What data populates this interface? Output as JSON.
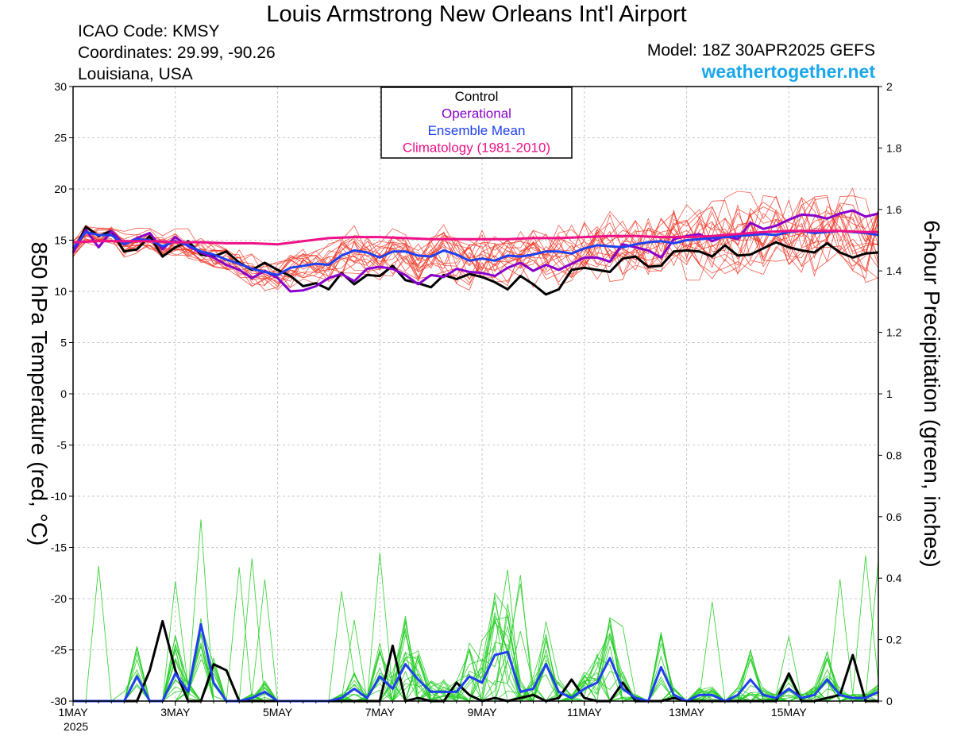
{
  "header": {
    "title": "Louis Armstrong New Orleans Int'l Airport",
    "icao": "ICAO Code: KMSY",
    "coordinates": "Coordinates: 29.99, -90.26",
    "region": "Louisiana, USA",
    "model": "Model: 18Z 30APR2025 GEFS",
    "brand": "weathertogether.net"
  },
  "colors": {
    "control": "#000000",
    "operational": "#8800cc",
    "ensemble_mean": "#2040ee",
    "climatology": "#ee1188",
    "member_temp": "#ee3322",
    "member_precip": "#22cc22"
  },
  "chart_data": {
    "type": "line",
    "xlabel": "",
    "ylabel": "850 hPa Temperature (red, °C)",
    "y2label": "6-hour Precipitation (green, inches)",
    "ylim": [
      -30,
      30
    ],
    "y2lim": [
      0,
      2
    ],
    "yticks": [
      30,
      25,
      20,
      15,
      10,
      5,
      0,
      -5,
      -10,
      -15,
      -20,
      -25,
      -30
    ],
    "y2ticks": [
      "2",
      "1.8",
      "1.6",
      "1.4",
      "1.2",
      "1",
      "0.8",
      "0.6",
      "0.4",
      "0.2",
      "0"
    ],
    "grid": true,
    "legend_position": "top-center",
    "x_unit": "days since 1 May 2025 00Z",
    "xlim": [
      0,
      15.75
    ],
    "xticks": [
      {
        "x": 0,
        "label": "1MAY",
        "sub": "2025"
      },
      {
        "x": 2,
        "label": "3MAY"
      },
      {
        "x": 4,
        "label": "5MAY"
      },
      {
        "x": 6,
        "label": "7MAY"
      },
      {
        "x": 8,
        "label": "9MAY"
      },
      {
        "x": 10,
        "label": "11MAY"
      },
      {
        "x": 12,
        "label": "13MAY"
      },
      {
        "x": 14,
        "label": "15MAY"
      }
    ],
    "legend": [
      "Control",
      "Operational",
      "Ensemble Mean",
      "Climatology (1981-2010)"
    ],
    "series": [
      {
        "name": "Control",
        "axis": "temp",
        "color": "#000000",
        "x": [
          0,
          0.25,
          0.5,
          0.75,
          1,
          1.25,
          1.5,
          1.75,
          2,
          2.25,
          2.5,
          2.75,
          3,
          3.25,
          3.5,
          3.75,
          4,
          4.25,
          4.5,
          4.75,
          5,
          5.25,
          5.5,
          5.75,
          6,
          6.25,
          6.5,
          6.75,
          7,
          7.25,
          7.5,
          7.75,
          8,
          8.25,
          8.5,
          8.75,
          9,
          9.25,
          9.5,
          9.75,
          10,
          10.25,
          10.5,
          10.75,
          11,
          11.25,
          11.5,
          11.75,
          12,
          12.25,
          12.5,
          12.75,
          13,
          13.25,
          13.5,
          13.75,
          14,
          14.25,
          14.5,
          14.75,
          15,
          15.25,
          15.5,
          15.75
        ],
        "y": [
          13.8,
          16.3,
          15.4,
          15.9,
          13.9,
          14.1,
          15.4,
          13.4,
          14.3,
          14.9,
          13.6,
          13.4,
          13.9,
          12.8,
          12.1,
          12.8,
          12.1,
          11.5,
          10.5,
          10.8,
          10.2,
          11.8,
          10.7,
          11.6,
          11.5,
          12.5,
          11.1,
          10.8,
          10.4,
          11.6,
          11.2,
          11.7,
          11.4,
          10.9,
          10.2,
          11.5,
          10.7,
          9.7,
          10.2,
          12.1,
          12.3,
          12.1,
          11.9,
          13.2,
          13.4,
          12.4,
          12.5,
          13.9,
          14.0,
          13.9,
          13.4,
          14.5,
          13.5,
          13.6,
          14.2,
          14.8,
          14.3,
          14.0,
          13.8,
          14.7,
          13.8,
          13.3,
          13.7,
          13.8
        ]
      },
      {
        "name": "Operational",
        "axis": "temp",
        "color": "#8800cc",
        "x": [
          0,
          0.25,
          0.5,
          0.75,
          1,
          1.25,
          1.5,
          1.75,
          2,
          2.25,
          2.5,
          2.75,
          3,
          3.25,
          3.5,
          3.75,
          4,
          4.25,
          4.5,
          4.75,
          5,
          5.25,
          5.5,
          5.75,
          6,
          6.25,
          6.5,
          6.75,
          7,
          7.25,
          7.5,
          7.75,
          8,
          8.25,
          8.5,
          8.75,
          9,
          9.25,
          9.5,
          9.75,
          10,
          10.25,
          10.5,
          10.75,
          11,
          11.25,
          11.5,
          11.75,
          12,
          12.25,
          12.5,
          12.75,
          13,
          13.25,
          13.5,
          13.75,
          14,
          14.25,
          14.5,
          14.75,
          15,
          15.25,
          15.5,
          15.75
        ],
        "y": [
          13.8,
          16.0,
          14.3,
          15.9,
          14.6,
          15.2,
          15.7,
          14.1,
          15.3,
          14.4,
          13.8,
          13.3,
          12.6,
          12.1,
          11.3,
          12.0,
          11.3,
          10.0,
          10.1,
          10.5,
          11.3,
          11.7,
          11.0,
          12.2,
          12.4,
          12.2,
          11.6,
          10.7,
          11.6,
          11.4,
          12.2,
          11.9,
          11.8,
          11.5,
          12.3,
          12.8,
          12.0,
          12.6,
          12.1,
          12.7,
          13.3,
          13.3,
          12.9,
          14.6,
          14.3,
          14.0,
          13.3,
          15.1,
          15.4,
          15.6,
          14.9,
          15.4,
          15.1,
          16.7,
          16.1,
          16.4,
          17.0,
          17.5,
          17.4,
          17.1,
          17.6,
          17.9,
          17.3,
          17.6
        ]
      },
      {
        "name": "Ensemble Mean",
        "axis": "temp",
        "color": "#2040ee",
        "x": [
          0,
          0.25,
          0.5,
          0.75,
          1,
          1.25,
          1.5,
          1.75,
          2,
          2.25,
          2.5,
          2.75,
          3,
          3.25,
          3.5,
          3.75,
          4,
          4.25,
          4.5,
          4.75,
          5,
          5.25,
          5.5,
          5.75,
          6,
          6.25,
          6.5,
          6.75,
          7,
          7.25,
          7.5,
          7.75,
          8,
          8.25,
          8.5,
          8.75,
          9,
          9.25,
          9.5,
          9.75,
          10,
          10.25,
          10.5,
          10.75,
          11,
          11.25,
          11.5,
          11.75,
          12,
          12.25,
          12.5,
          12.75,
          13,
          13.25,
          13.5,
          13.75,
          14,
          14.25,
          14.5,
          14.75,
          15,
          15.25,
          15.5,
          15.75
        ],
        "y": [
          14.2,
          15.8,
          15.5,
          15.5,
          14.6,
          15.1,
          15.0,
          14.4,
          14.9,
          14.5,
          13.9,
          13.6,
          13.1,
          12.7,
          12.2,
          11.9,
          11.6,
          12.3,
          12.5,
          12.7,
          12.6,
          13.5,
          14.0,
          13.8,
          13.3,
          13.9,
          13.9,
          13.5,
          13.4,
          14.0,
          13.6,
          13.0,
          13.2,
          13.0,
          13.5,
          13.4,
          13.6,
          13.9,
          13.9,
          13.7,
          14.2,
          14.5,
          14.4,
          14.3,
          14.6,
          14.8,
          14.9,
          14.7,
          15.0,
          15.1,
          15.2,
          15.3,
          15.4,
          15.5,
          15.6,
          15.5,
          15.8,
          15.9,
          15.7,
          15.8,
          15.9,
          15.8,
          15.7,
          15.5
        ]
      },
      {
        "name": "Climatology (1981-2010)",
        "axis": "temp",
        "color": "#ee1188",
        "x": [
          0,
          0.5,
          1,
          1.5,
          2,
          2.5,
          3,
          3.5,
          4,
          4.5,
          5,
          5.5,
          6,
          6.5,
          7,
          7.5,
          8,
          8.5,
          9,
          9.5,
          10,
          10.5,
          11,
          11.5,
          12,
          12.5,
          13,
          13.5,
          14,
          14.5,
          15,
          15.5,
          15.75
        ],
        "y": [
          14.8,
          14.9,
          14.9,
          14.9,
          14.8,
          14.8,
          14.7,
          14.7,
          14.6,
          14.9,
          15.2,
          15.3,
          15.3,
          15.2,
          15.1,
          15.1,
          15.1,
          15.1,
          15.2,
          15.2,
          15.3,
          15.4,
          15.4,
          15.3,
          15.3,
          15.4,
          15.6,
          15.8,
          15.9,
          15.9,
          15.9,
          15.8,
          15.8
        ]
      },
      {
        "name": "Control",
        "axis": "precip",
        "color": "#000000",
        "x": [
          0,
          0.25,
          0.5,
          0.75,
          1,
          1.25,
          1.5,
          1.75,
          2,
          2.25,
          2.5,
          2.75,
          3,
          3.25,
          3.5,
          3.75,
          4,
          4.25,
          4.5,
          4.75,
          5,
          5.25,
          5.5,
          5.75,
          6,
          6.25,
          6.5,
          6.75,
          7,
          7.25,
          7.5,
          7.75,
          8,
          8.25,
          8.5,
          8.75,
          9,
          9.25,
          9.5,
          9.75,
          10,
          10.25,
          10.5,
          10.75,
          11,
          11.25,
          11.5,
          11.75,
          12,
          12.25,
          12.5,
          12.75,
          13,
          13.25,
          13.5,
          13.75,
          14,
          14.25,
          14.5,
          14.75,
          15,
          15.25,
          15.5,
          15.75
        ],
        "y": [
          0,
          0,
          0,
          0,
          0,
          0,
          0.1,
          0.26,
          0.1,
          0,
          0,
          0.12,
          0.1,
          0,
          0,
          0,
          0,
          0,
          0,
          0,
          0,
          0,
          0,
          0,
          0,
          0.18,
          0,
          0.01,
          0,
          0,
          0.06,
          0.02,
          0,
          0.01,
          0,
          0.01,
          0.02,
          0,
          0.01,
          0.07,
          0.01,
          0,
          0,
          0.06,
          0,
          0,
          0,
          0.01,
          0,
          0,
          0,
          0,
          0,
          0,
          0,
          0,
          0.09,
          0,
          0,
          0.01,
          0.02,
          0.15,
          0,
          0
        ]
      },
      {
        "name": "Ensemble Mean",
        "axis": "precip",
        "color": "#2040ee",
        "x": [
          0,
          0.25,
          0.5,
          0.75,
          1,
          1.25,
          1.5,
          1.75,
          2,
          2.25,
          2.5,
          2.75,
          3,
          3.25,
          3.5,
          3.75,
          4,
          4.25,
          4.5,
          4.75,
          5,
          5.25,
          5.5,
          5.75,
          6,
          6.25,
          6.5,
          6.75,
          7,
          7.25,
          7.5,
          7.75,
          8,
          8.25,
          8.5,
          8.75,
          9,
          9.25,
          9.5,
          9.75,
          10,
          10.25,
          10.5,
          10.75,
          11,
          11.25,
          11.5,
          11.75,
          12,
          12.25,
          12.5,
          12.75,
          13,
          13.25,
          13.5,
          13.75,
          14,
          14.25,
          14.5,
          14.75,
          15,
          15.25,
          15.5,
          15.75
        ],
        "y": [
          0,
          0,
          0,
          0,
          0,
          0.08,
          0,
          0,
          0.09,
          0.03,
          0.25,
          0.06,
          0,
          0,
          0.01,
          0.03,
          0,
          0,
          0,
          0,
          0,
          0.01,
          0.04,
          0.01,
          0.08,
          0.04,
          0.12,
          0.07,
          0.03,
          0.03,
          0.03,
          0.08,
          0.06,
          0.15,
          0.16,
          0.03,
          0.04,
          0.12,
          0.03,
          0.01,
          0.04,
          0.06,
          0.14,
          0.04,
          0.01,
          0,
          0.11,
          0.02,
          0,
          0.02,
          0.02,
          0,
          0.02,
          0.07,
          0.02,
          0.01,
          0.04,
          0.01,
          0.02,
          0.07,
          0.02,
          0.01,
          0.01,
          0.03
        ]
      }
    ]
  }
}
